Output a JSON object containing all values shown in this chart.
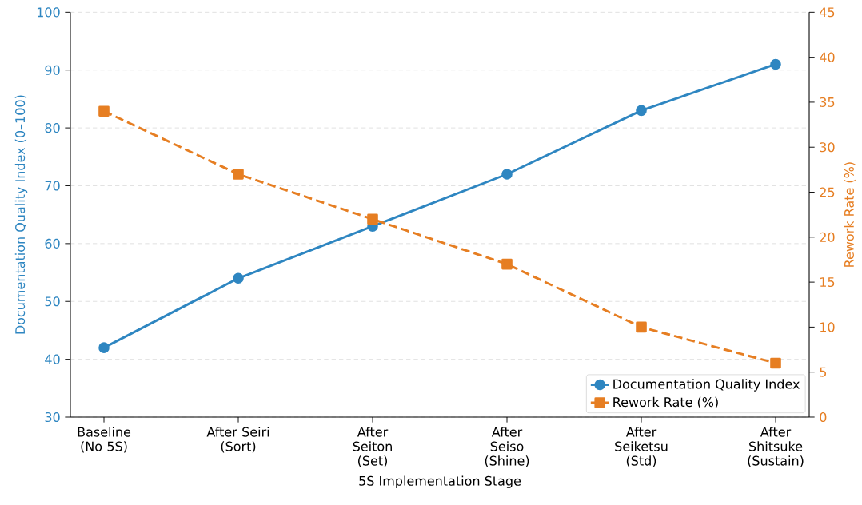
{
  "chart_data": {
    "type": "line",
    "xlabel": "5S Implementation Stage",
    "ylabel": "Documentation Quality Index (0–100)",
    "y2label": "Rework Rate (%)",
    "categories": [
      "Baseline (No 5S)",
      "After Seiri (Sort)",
      "After Seiton (Set)",
      "After Seiso (Shine)",
      "After Seiketsu (Std)",
      "After Shitsuke (Sustain)"
    ],
    "series": [
      {
        "name": "Documentation Quality Index",
        "color": "#2e86c1",
        "values": [
          42,
          54,
          63,
          72,
          83,
          91
        ],
        "marker": "circle",
        "line_style": "solid"
      },
      {
        "name": "Rework Rate (%)",
        "color": "#e67e22",
        "values": [
          34,
          27,
          22,
          17,
          10,
          6
        ],
        "marker": "square",
        "line_style": "dashed",
        "axis": "y2"
      }
    ],
    "ylim": [
      30,
      100
    ],
    "yticks": [
      30,
      40,
      50,
      60,
      70,
      80,
      90,
      100
    ],
    "y2lim": [
      0,
      45
    ],
    "y2ticks": [
      0,
      5,
      10,
      15,
      20,
      25,
      30,
      35,
      40,
      45
    ],
    "grid": "y",
    "legend": "bottom right"
  }
}
